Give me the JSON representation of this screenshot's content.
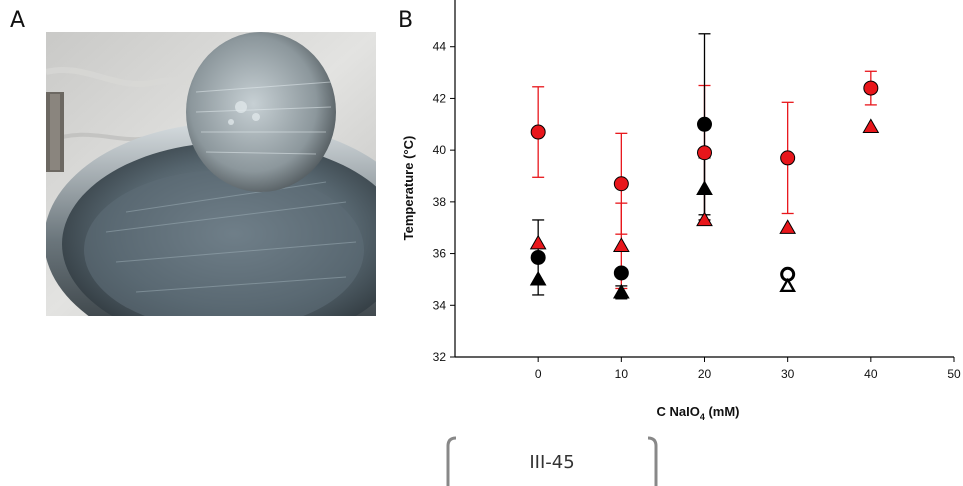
{
  "figure": {
    "panel_a_label": "A",
    "panel_b_label": "B",
    "photo_description_icon": "metal-disc-photo-icon"
  },
  "page": {
    "number": "III-45"
  },
  "chart_data": {
    "type": "scatter",
    "xlabel_main": "C NaIO",
    "xlabel_sub": "4",
    "xlabel_unit": " (mM)",
    "ylabel": "Temperature (°C)",
    "xlim": [
      -10,
      50
    ],
    "ylim": [
      32,
      46
    ],
    "x_ticks": [
      0,
      10,
      20,
      30,
      40,
      50
    ],
    "y_ticks": [
      32,
      34,
      36,
      38,
      40,
      42,
      44
    ],
    "grid": false,
    "colors": {
      "red": "#e8161b",
      "black": "#000000",
      "red_error": "#e8161b",
      "black_error": "#000000"
    },
    "series": [
      {
        "marker": "circle",
        "color": "red",
        "points": [
          {
            "x": 0,
            "y": 40.7,
            "err": 1.75
          },
          {
            "x": 10,
            "y": 38.7,
            "err": 1.95
          },
          {
            "x": 20,
            "y": 39.9,
            "err": 2.6
          },
          {
            "x": 30,
            "y": 39.7,
            "err": 2.15
          },
          {
            "x": 40,
            "y": 42.4,
            "err": 0.65
          }
        ]
      },
      {
        "marker": "triangle",
        "color": "red",
        "points": [
          {
            "x": 0,
            "y": 36.4,
            "err": 0
          },
          {
            "x": 10,
            "y": 36.3,
            "err": 1.65
          },
          {
            "x": 20,
            "y": 37.3,
            "err": 0
          },
          {
            "x": 30,
            "y": 37.0,
            "err": 0
          },
          {
            "x": 40,
            "y": 40.9,
            "err": 0
          }
        ]
      },
      {
        "marker": "circle",
        "color": "black",
        "points": [
          {
            "x": 0,
            "y": 35.85,
            "err": 1.45
          },
          {
            "x": 10,
            "y": 35.25,
            "err": 0
          },
          {
            "x": 20,
            "y": 41.0,
            "err": 3.5
          },
          {
            "x": 30,
            "y": 35.2,
            "err": 0
          }
        ]
      },
      {
        "marker": "triangle",
        "color": "black",
        "points": [
          {
            "x": 0,
            "y": 35.0,
            "err": 0
          },
          {
            "x": 10,
            "y": 34.5,
            "err": 0.25
          },
          {
            "x": 20,
            "y": 38.5,
            "err": 1.2
          },
          {
            "x": 30,
            "y": 34.75,
            "err": 0
          }
        ]
      },
      {
        "marker": "circle-open",
        "color": "black",
        "points": [
          {
            "x": 30,
            "y": 35.2,
            "err": 0
          }
        ]
      },
      {
        "marker": "triangle-open",
        "color": "black",
        "points": [
          {
            "x": 30,
            "y": 34.75,
            "err": 0
          }
        ]
      }
    ]
  }
}
